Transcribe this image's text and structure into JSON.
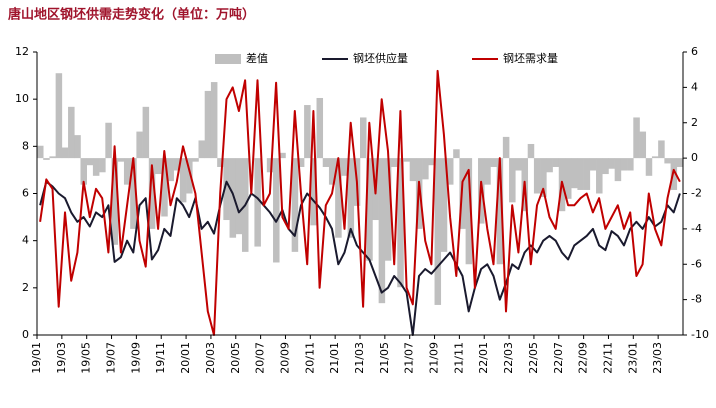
{
  "chart_data": {
    "type": "combo",
    "title": "唐山地区钢坯供需走势变化（单位：万吨）",
    "categories": [
      "19/01",
      null,
      null,
      null,
      "19/03",
      null,
      null,
      null,
      "19/05",
      null,
      null,
      null,
      "19/07",
      null,
      null,
      null,
      "19/09",
      null,
      null,
      null,
      "19/11",
      null,
      null,
      null,
      "20/01",
      null,
      null,
      null,
      "20/03",
      null,
      null,
      null,
      "20/05",
      null,
      null,
      null,
      "20/07",
      null,
      null,
      null,
      "20/09",
      null,
      null,
      null,
      "20/11",
      null,
      null,
      null,
      "21/01",
      null,
      null,
      null,
      "21/03",
      null,
      null,
      null,
      "21/05",
      null,
      null,
      null,
      "21/07",
      null,
      null,
      null,
      "21/09",
      null,
      null,
      null,
      "21/11",
      null,
      null,
      null,
      "22/01",
      null,
      null,
      null,
      "22/03",
      null,
      null,
      null,
      "22/05",
      null,
      null,
      null,
      "22/07",
      null,
      null,
      null,
      "22/09",
      null,
      null,
      null,
      "22/11",
      null,
      null,
      null,
      "23/01",
      null,
      null,
      null,
      "23/03",
      null,
      null,
      null
    ],
    "series": [
      {
        "name": "差值",
        "type": "bar",
        "axis": "y2",
        "color": "#bfbfbf",
        "values": [
          0.7,
          -0.1,
          0.1,
          4.8,
          0.6,
          2.9,
          1.3,
          -1.5,
          -0.4,
          -1.0,
          -0.8,
          2.0,
          -4.9,
          -0.2,
          -1.5,
          -4.0,
          1.5,
          2.9,
          -4.0,
          -0.9,
          -3.3,
          -1.3,
          -0.7,
          -2.5,
          -2.0,
          -0.2,
          1.0,
          3.8,
          4.3,
          -0.5,
          -3.5,
          -4.5,
          -4.3,
          -5.3,
          0.0,
          -5.0,
          0.0,
          -0.8,
          -5.9,
          0.3,
          0.0,
          -5.3,
          -0.5,
          3.0,
          -3.8,
          3.4,
          -0.5,
          -1.5,
          -4.5,
          -1.0,
          -4.5,
          -2.7,
          2.3,
          -5.8,
          -3.5,
          -8.2,
          -5.8,
          -0.5,
          -7.3,
          -0.2,
          -1.3,
          -4.0,
          -1.2,
          -0.4,
          -8.3,
          -5.3,
          -1.5,
          0.5,
          -4.0,
          -6.0,
          0.0,
          -3.7,
          -1.5,
          -0.5,
          -6.0,
          1.2,
          -2.5,
          -0.7,
          -3.0,
          0.8,
          -2.0,
          -2.2,
          -0.8,
          -0.5,
          -3.0,
          -2.3,
          -1.7,
          -1.8,
          -1.8,
          -0.7,
          -2.0,
          -0.9,
          -0.6,
          -1.3,
          -0.7,
          -0.7,
          2.3,
          1.5,
          -1.0,
          0.1,
          1.0,
          -0.3,
          -1.8,
          -0.5
        ]
      },
      {
        "name": "钢坯供应量",
        "type": "line",
        "color": "#1a1a2e",
        "values": [
          5.5,
          6.5,
          6.3,
          6.0,
          5.8,
          5.2,
          4.8,
          5.0,
          4.6,
          5.2,
          5.0,
          5.5,
          3.1,
          3.3,
          4.0,
          3.5,
          5.5,
          5.8,
          3.2,
          3.6,
          4.5,
          4.2,
          5.8,
          5.5,
          5.0,
          5.8,
          4.5,
          4.8,
          4.3,
          5.5,
          6.5,
          6.0,
          5.2,
          5.5,
          6.0,
          5.8,
          5.5,
          5.2,
          4.8,
          5.3,
          4.5,
          4.2,
          5.5,
          6.0,
          5.7,
          5.4,
          5.0,
          4.5,
          3.0,
          3.5,
          4.5,
          3.8,
          3.5,
          3.2,
          2.5,
          1.8,
          2.0,
          2.5,
          2.2,
          1.8,
          0.0,
          2.5,
          2.8,
          2.6,
          2.9,
          3.2,
          3.5,
          3.0,
          2.5,
          1.0,
          2.0,
          2.8,
          3.0,
          2.5,
          1.5,
          2.2,
          3.0,
          2.8,
          3.5,
          3.8,
          3.5,
          4.0,
          4.2,
          4.0,
          3.5,
          3.2,
          3.8,
          4.0,
          4.2,
          4.5,
          3.8,
          3.6,
          4.4,
          4.2,
          3.8,
          4.5,
          4.8,
          4.5,
          5.0,
          4.6,
          4.8,
          5.5,
          5.2,
          6.0
        ]
      },
      {
        "name": "钢坯需求量",
        "type": "line",
        "color": "#c00000",
        "values": [
          4.8,
          6.6,
          6.2,
          1.2,
          5.2,
          2.3,
          3.5,
          6.5,
          5.0,
          6.2,
          5.8,
          3.5,
          8.0,
          3.5,
          5.5,
          7.5,
          4.0,
          2.9,
          7.2,
          4.5,
          7.8,
          5.5,
          6.5,
          8.0,
          7.0,
          6.0,
          3.5,
          1.0,
          0.0,
          6.0,
          10.0,
          10.5,
          9.5,
          10.8,
          6.0,
          10.8,
          5.5,
          6.0,
          10.7,
          5.0,
          4.5,
          9.5,
          6.0,
          3.0,
          9.5,
          2.0,
          5.5,
          6.0,
          7.5,
          4.5,
          9.0,
          6.5,
          1.2,
          9.0,
          6.0,
          10.0,
          7.8,
          3.0,
          9.5,
          2.0,
          1.3,
          6.5,
          4.0,
          3.0,
          11.2,
          8.5,
          5.0,
          2.5,
          6.5,
          7.0,
          2.0,
          6.5,
          4.5,
          3.0,
          7.5,
          1.0,
          5.5,
          3.5,
          6.5,
          3.0,
          5.5,
          6.2,
          5.0,
          4.5,
          6.5,
          5.5,
          5.5,
          5.8,
          6.0,
          5.2,
          5.8,
          4.5,
          5.0,
          5.5,
          4.5,
          5.2,
          2.5,
          3.0,
          6.0,
          4.5,
          3.8,
          5.8,
          7.0,
          6.5
        ]
      }
    ],
    "ylim": [
      0,
      12
    ],
    "yticks": [
      0,
      2,
      4,
      6,
      8,
      10,
      12
    ],
    "y2lim": [
      -10,
      6
    ],
    "y2ticks": [
      -10,
      -8,
      -6,
      -4,
      -2,
      0,
      2,
      4,
      6
    ]
  }
}
